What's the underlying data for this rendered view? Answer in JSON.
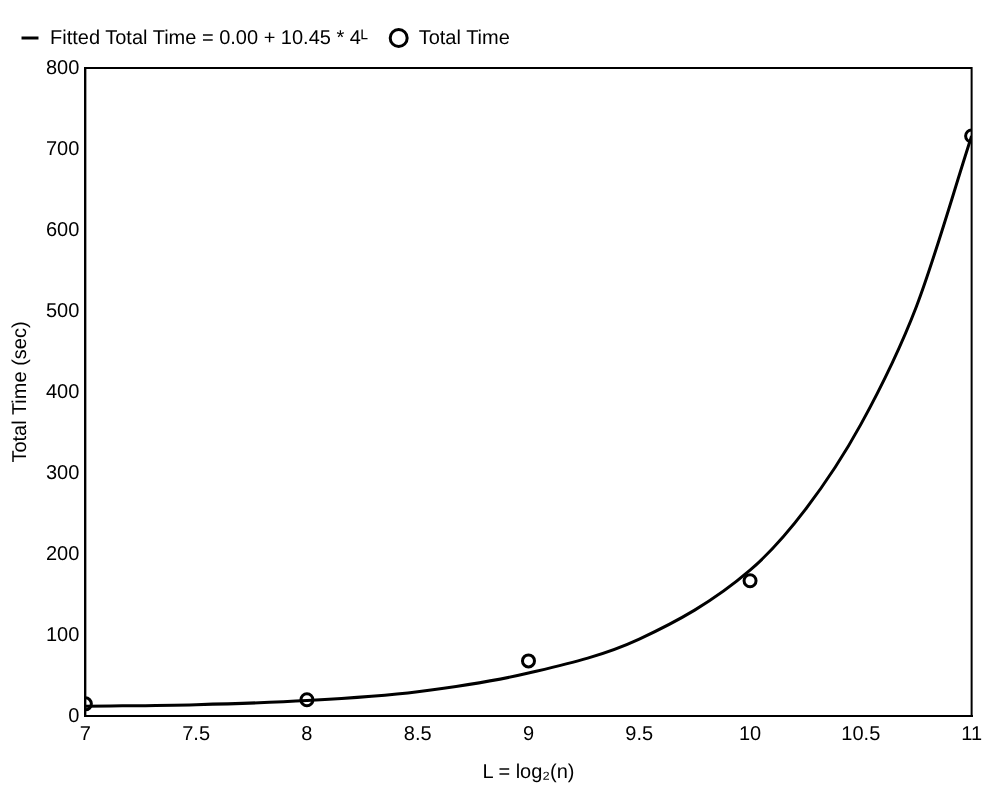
{
  "chart_data": {
    "type": "scatter",
    "xlabel": "L = log₂(n)",
    "ylabel": "Total Time (sec)",
    "xlim": [
      7,
      11
    ],
    "xticks": [
      7,
      7.5,
      8,
      8.5,
      9,
      9.5,
      10,
      10.5,
      11
    ],
    "ylim": [
      0,
      800
    ],
    "yticks": [
      0,
      100,
      200,
      300,
      400,
      500,
      600,
      700,
      800
    ],
    "grid": false,
    "legend": "top left",
    "series": [
      {
        "name": "Fitted Total Time = 0.00 + 10.45 * 4ᴸ",
        "type": "line",
        "color": "#000000",
        "marker": "none",
        "line_style": "solid",
        "x": [
          7,
          7.5,
          8,
          8.5,
          9,
          9.5,
          10,
          10.25,
          10.5,
          10.75,
          11
        ],
        "values": [
          12,
          14,
          19,
          30,
          53,
          95,
          180,
          255,
          360,
          505,
          716
        ]
      },
      {
        "name": "Total Time",
        "type": "scatter",
        "color": "#000000",
        "marker": "circle",
        "x": [
          7,
          8,
          9,
          10,
          11
        ],
        "values": [
          15,
          20,
          68,
          167,
          716
        ]
      }
    ]
  }
}
